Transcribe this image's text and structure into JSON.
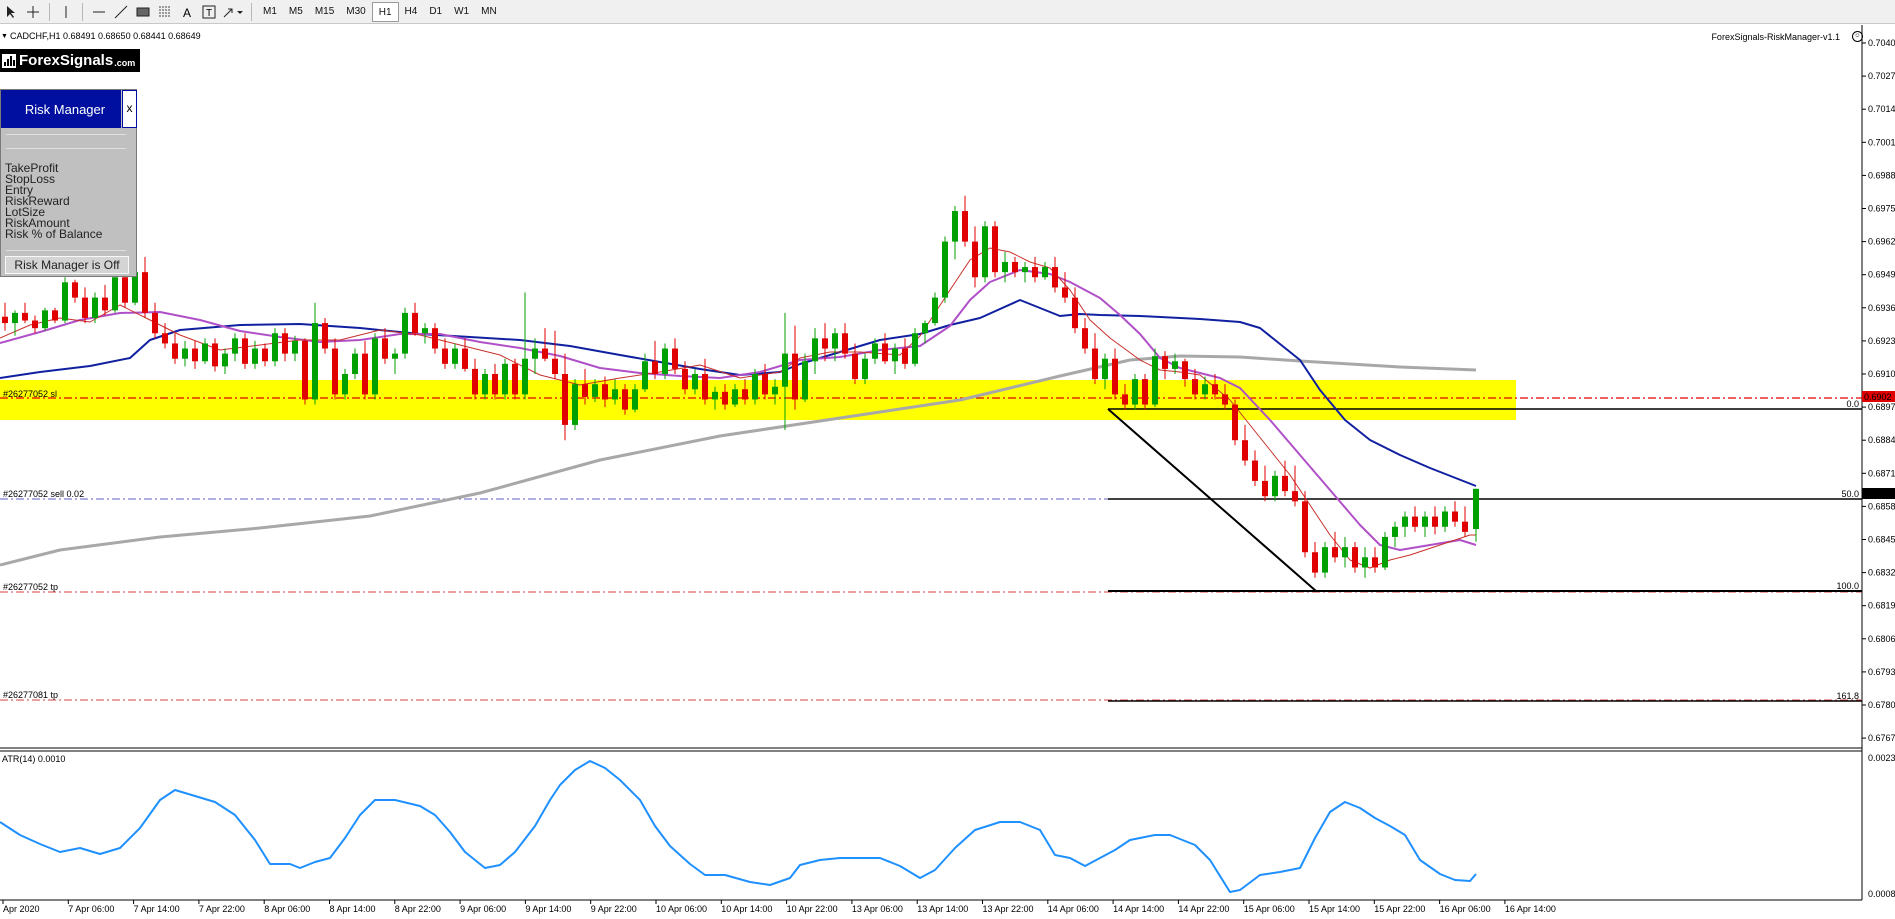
{
  "toolbar": {
    "tools": [
      "cursor-icon",
      "crosshair-icon",
      "vertical-line-icon",
      "horizontal-line-icon",
      "trendline-icon",
      "rectangle-icon",
      "fibonacci-icon",
      "text-icon",
      "text-label-icon",
      "arrows-icon"
    ],
    "timeframes": [
      "M1",
      "M5",
      "M15",
      "M30",
      "H1",
      "H4",
      "D1",
      "W1",
      "MN"
    ],
    "active_timeframe": "H1"
  },
  "chart": {
    "symbol_info": "CADCHF,H1  0.68491 0.68650 0.68441 0.68649",
    "ea_name": "ForexSignals-RiskManager-v1.1",
    "ea_face": "☺",
    "logo": {
      "text": "ForexSignals",
      "suffix": ".com"
    },
    "price_axis": [
      "0.7040",
      "0.7027",
      "0.7014",
      "0.7001",
      "0.6988",
      "0.6975",
      "0.6962",
      "0.6949",
      "0.6936",
      "0.6923",
      "0.6910",
      "0.6897",
      "0.6884",
      "0.6871",
      "0.6858",
      "0.6845",
      "0.6832",
      "0.6819",
      "0.6806",
      "0.6793",
      "0.6780",
      "0.6767"
    ],
    "price_marker_red": "0.6902",
    "price_marker_black": "0.6864",
    "time_axis": [
      "Apr 2020",
      "7 Apr 06:00",
      "7 Apr 14:00",
      "7 Apr 22:00",
      "8 Apr 06:00",
      "8 Apr 14:00",
      "8 Apr 22:00",
      "9 Apr 06:00",
      "9 Apr 14:00",
      "9 Apr 22:00",
      "10 Apr 06:00",
      "10 Apr 14:00",
      "10 Apr 22:00",
      "13 Apr 06:00",
      "13 Apr 14:00",
      "13 Apr 22:00",
      "14 Apr 06:00",
      "14 Apr 14:00",
      "14 Apr 22:00",
      "15 Apr 06:00",
      "15 Apr 14:00",
      "15 Apr 22:00",
      "16 Apr 06:00",
      "16 Apr 14:00"
    ],
    "order_labels": {
      "sl": "#26277052 sl",
      "sell": "#26277052 sell 0.02",
      "tp1": "#26277052 tp",
      "tp2": "#26277081 tp"
    },
    "fib_labels": {
      "f0": "0.0",
      "f50": "50.0",
      "f100": "100.0",
      "f161": "161.8"
    },
    "colors": {
      "bull": "#00a000",
      "bear": "#e00000",
      "zone": "#ffff00",
      "ma_fast": "#c8302a",
      "ma_mid": "#b050c8",
      "ma_slow": "#1020a0",
      "ma_200": "#a8a8a8",
      "atr": "#1e90ff"
    }
  },
  "risk_manager": {
    "title": "Risk Manager",
    "close": "x",
    "rows": [
      "TakeProfit",
      "StopLoss",
      "Entry",
      "RiskReward",
      "LotSize",
      "RiskAmount",
      "Risk % of Balance"
    ],
    "status": "Risk Manager is Off"
  },
  "atr": {
    "label": "ATR(14) 0.0010",
    "axis_top": "0.0023",
    "axis_bottom": "0.0008"
  }
}
